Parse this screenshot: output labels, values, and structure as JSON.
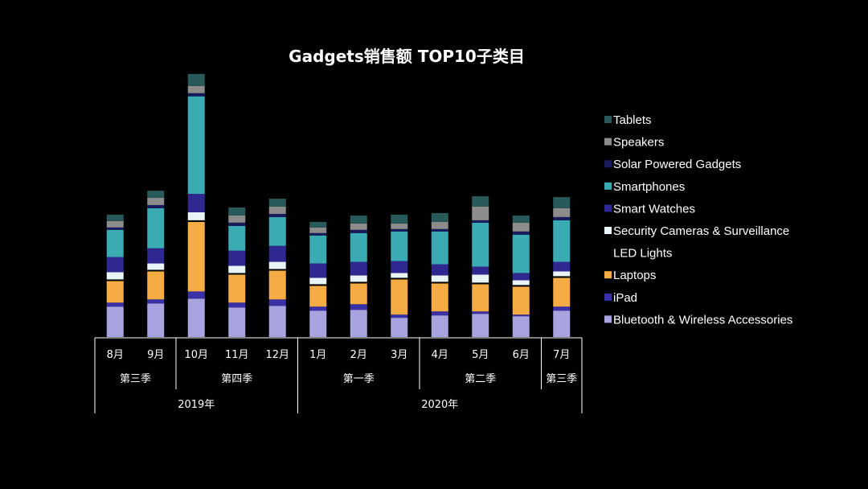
{
  "chart_data": {
    "type": "bar",
    "stacked": true,
    "title": "Gadgets销售额 TOP10子类目",
    "categories": [
      "8月",
      "9月",
      "10月",
      "11月",
      "12月",
      "1月",
      "2月",
      "3月",
      "4月",
      "5月",
      "6月",
      "7月"
    ],
    "groups": [
      {
        "name": "第三季",
        "span": 2
      },
      {
        "name": "第四季",
        "span": 3
      },
      {
        "name": "第一季",
        "span": 3
      },
      {
        "name": "第二季",
        "span": 3
      },
      {
        "name": "第三季",
        "span": 1
      }
    ],
    "years": [
      {
        "name": "2019年",
        "span": 5
      },
      {
        "name": "2020年",
        "span": 7
      }
    ],
    "ylim": [
      0,
      340
    ],
    "xlabel": "",
    "ylabel": "",
    "legend_position": "right",
    "series": [
      {
        "name": "Bluetooth & Wireless Accessories",
        "color": "#a9a3e0",
        "values": [
          38,
          42,
          48,
          37,
          39,
          33,
          34,
          24,
          27,
          29,
          26,
          33
        ]
      },
      {
        "name": "iPad",
        "color": "#3a31a8",
        "values": [
          5,
          5,
          9,
          6,
          8,
          5,
          7,
          4,
          5,
          3,
          2,
          5
        ]
      },
      {
        "name": "Laptops",
        "color": "#f6ac44",
        "values": [
          27,
          35,
          87,
          35,
          36,
          26,
          26,
          44,
          35,
          34,
          35,
          36
        ]
      },
      {
        "name": "LED Lights",
        "color": "#000000",
        "values": [
          2,
          2,
          2,
          2,
          2,
          2,
          2,
          2,
          2,
          2,
          2,
          2
        ]
      },
      {
        "name": "Security Cameras & Surveillance",
        "color": "#e8f4f6",
        "values": [
          9,
          8,
          10,
          9,
          9,
          8,
          8,
          6,
          8,
          10,
          6,
          6
        ]
      },
      {
        "name": "Smart Watches",
        "color": "#2f2890",
        "values": [
          19,
          19,
          23,
          19,
          20,
          18,
          17,
          15,
          14,
          10,
          9,
          12
        ]
      },
      {
        "name": "Smartphones",
        "color": "#3aabb3",
        "values": [
          34,
          50,
          122,
          31,
          36,
          35,
          36,
          37,
          41,
          55,
          48,
          52
        ]
      },
      {
        "name": "Solar Powered Gadgets",
        "color": "#181c5e",
        "values": [
          3,
          4,
          4,
          4,
          4,
          3,
          4,
          3,
          3,
          3,
          4,
          4
        ]
      },
      {
        "name": "Speakers",
        "color": "#8c8c8c",
        "values": [
          8,
          9,
          9,
          9,
          9,
          7,
          8,
          7,
          9,
          17,
          11,
          11
        ]
      },
      {
        "name": "Tablets",
        "color": "#275a58",
        "values": [
          8,
          9,
          15,
          10,
          10,
          7,
          10,
          11,
          11,
          13,
          9,
          14
        ]
      }
    ]
  }
}
